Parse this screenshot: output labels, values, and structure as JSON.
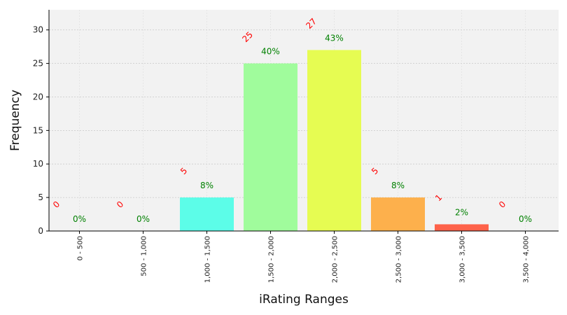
{
  "chart_data": {
    "type": "bar",
    "title": "",
    "xlabel": "iRating Ranges",
    "ylabel": "Frequency",
    "categories": [
      "0 - 500",
      "500 - 1,000",
      "1,000 - 1,500",
      "1,500 - 2,000",
      "2,000 - 2,500",
      "2,500 - 3,000",
      "3,000 - 3,500",
      "3,500 - 4,000"
    ],
    "values": [
      0,
      0,
      5,
      25,
      27,
      5,
      1,
      0
    ],
    "count_labels": [
      "0",
      "0",
      "5",
      "25",
      "27",
      "5",
      "1",
      "0"
    ],
    "percent_labels": [
      "0%",
      "0%",
      "8%",
      "40%",
      "43%",
      "8%",
      "2%",
      "0%"
    ],
    "bar_colors": [
      "#00ffff",
      "#00ffff",
      "#5cfde8",
      "#a0fc9c",
      "#e6fc52",
      "#fdb04c",
      "#fe624a",
      "#ff0000"
    ],
    "count_label_color": "#ff0000",
    "percent_label_color": "#008000",
    "ylim": [
      0,
      33
    ],
    "yticks": [
      0,
      5,
      10,
      15,
      20,
      25,
      30
    ],
    "grid": true,
    "plot_background": "#f2f2f2"
  }
}
